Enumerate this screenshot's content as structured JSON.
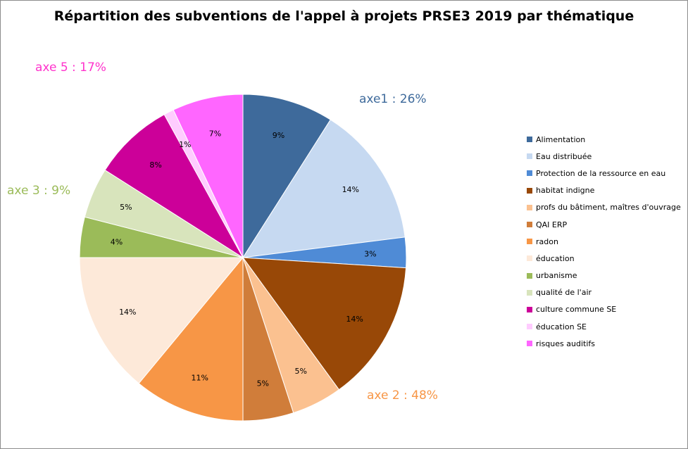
{
  "chart_data": {
    "type": "pie",
    "title": "Répartition des subventions de l'appel à projets PRSE3 2019 par thématique",
    "slices": [
      {
        "name": "Alimentation",
        "value": 9,
        "label": "9%",
        "color": "#3e6a9b"
      },
      {
        "name": "Eau distribuée",
        "value": 14,
        "label": "14%",
        "color": "#c6d9f1"
      },
      {
        "name": "Protection de la ressource en eau",
        "value": 3,
        "label": "3%",
        "color": "#4f8bd6"
      },
      {
        "name": "habitat indigne",
        "value": 14,
        "label": "14%",
        "color": "#984807"
      },
      {
        "name": "profs du bâtiment, maîtres d'ouvrage",
        "value": 5,
        "label": "5%",
        "color": "#fbc190"
      },
      {
        "name": "QAI ERP",
        "value": 5,
        "label": "5%",
        "color": "#d07d3a"
      },
      {
        "name": "radon",
        "value": 11,
        "label": "11%",
        "color": "#f79646"
      },
      {
        "name": "éducation",
        "value": 14,
        "label": "14%",
        "color": "#fde9d9"
      },
      {
        "name": "urbanisme",
        "value": 4,
        "label": "4%",
        "color": "#9bbb59"
      },
      {
        "name": "qualité de l'air",
        "value": 5,
        "label": "5%",
        "color": "#d8e4bc"
      },
      {
        "name": "culture commune SE",
        "value": 8,
        "label": "8%",
        "color": "#cc0099"
      },
      {
        "name": "éducation SE",
        "value": 1,
        "label": "1%",
        "color": "#ffccff"
      },
      {
        "name": "risques auditifs",
        "value": 7,
        "label": "7%",
        "color": "#ff66ff"
      }
    ],
    "groups": [
      {
        "label": "axe1 : 26%",
        "color": "#3e6a9b"
      },
      {
        "label": "axe 2 : 48%",
        "color": "#f79646"
      },
      {
        "label": "axe 3 : 9%",
        "color": "#9bbb59"
      },
      {
        "label": "axe 5 : 17%",
        "color": "#ff33cc"
      }
    ],
    "legend_position": "right"
  }
}
